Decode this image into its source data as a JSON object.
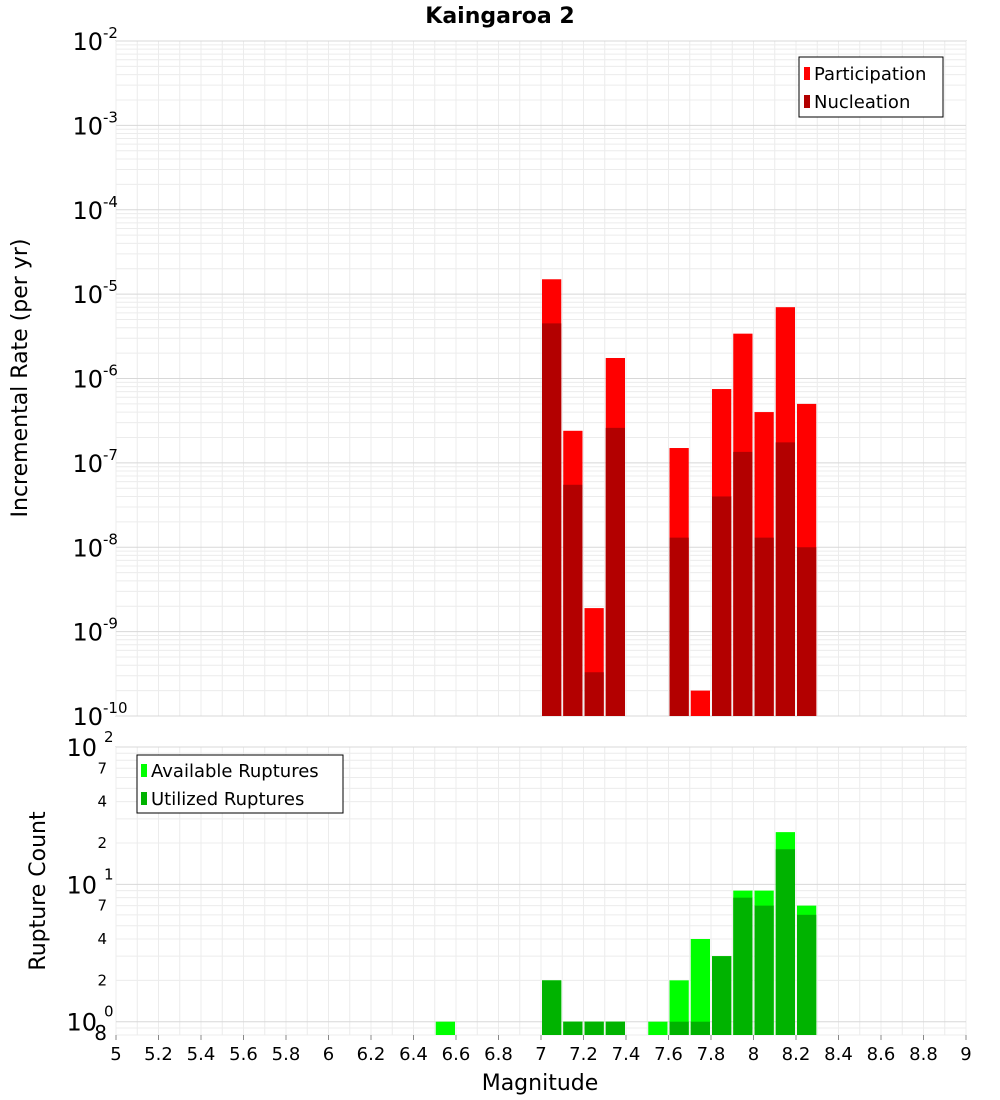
{
  "chart_data": [
    {
      "type": "bar",
      "title": "Kaingaroa 2",
      "xlabel": "",
      "ylabel": "Incremental Rate (per yr)",
      "yscale": "log",
      "ylim": [
        1e-10,
        0.01
      ],
      "xlim": [
        5,
        9
      ],
      "grid": true,
      "legend_position": "top-right",
      "bar_width": 0.1,
      "y_ticks": [
        {
          "base": "10",
          "exp": "-2",
          "value": 0.01
        },
        {
          "base": "10",
          "exp": "-3",
          "value": 0.001
        },
        {
          "base": "10",
          "exp": "-4",
          "value": 0.0001
        },
        {
          "base": "10",
          "exp": "-5",
          "value": 1e-05
        },
        {
          "base": "10",
          "exp": "-6",
          "value": 1e-06
        },
        {
          "base": "10",
          "exp": "-7",
          "value": 1e-07
        },
        {
          "base": "10",
          "exp": "-8",
          "value": 1e-08
        },
        {
          "base": "10",
          "exp": "-9",
          "value": 1e-09
        },
        {
          "base": "10",
          "exp": "-10",
          "value": 1e-10
        }
      ],
      "series": [
        {
          "name": "Participation",
          "color": "#ff0000",
          "points": [
            {
              "x": 7.05,
              "y": 1.5e-05
            },
            {
              "x": 7.15,
              "y": 2.4e-07
            },
            {
              "x": 7.25,
              "y": 1.9e-09
            },
            {
              "x": 7.35,
              "y": 1.75e-06
            },
            {
              "x": 7.65,
              "y": 1.5e-07
            },
            {
              "x": 7.75,
              "y": 2e-10
            },
            {
              "x": 7.85,
              "y": 7.5e-07
            },
            {
              "x": 7.95,
              "y": 3.4e-06
            },
            {
              "x": 8.05,
              "y": 4e-07
            },
            {
              "x": 8.15,
              "y": 7e-06
            },
            {
              "x": 8.25,
              "y": 5e-07
            }
          ]
        },
        {
          "name": "Nucleation",
          "color": "#b30000",
          "points": [
            {
              "x": 7.05,
              "y": 4.5e-06
            },
            {
              "x": 7.15,
              "y": 5.5e-08
            },
            {
              "x": 7.25,
              "y": 3.3e-10
            },
            {
              "x": 7.35,
              "y": 2.6e-07
            },
            {
              "x": 7.65,
              "y": 1.3e-08
            },
            {
              "x": 7.85,
              "y": 4e-08
            },
            {
              "x": 7.95,
              "y": 1.35e-07
            },
            {
              "x": 8.05,
              "y": 1.3e-08
            },
            {
              "x": 8.15,
              "y": 1.75e-07
            },
            {
              "x": 8.25,
              "y": 1e-08
            }
          ]
        }
      ]
    },
    {
      "type": "bar",
      "title": "",
      "xlabel": "Magnitude",
      "ylabel": "Rupture Count",
      "yscale": "log",
      "ylim": [
        0.8,
        100
      ],
      "xlim": [
        5,
        9
      ],
      "grid": true,
      "legend_position": "top-left",
      "bar_width": 0.1,
      "x_ticks": [
        "5",
        "5.2",
        "5.4",
        "5.6",
        "5.8",
        "6",
        "6.2",
        "6.4",
        "6.6",
        "6.8",
        "7",
        "7.2",
        "7.4",
        "7.6",
        "7.8",
        "8",
        "8.2",
        "8.4",
        "8.6",
        "8.8",
        "9"
      ],
      "y_major_ticks": [
        {
          "base": "10",
          "exp": "2",
          "value": 100
        },
        {
          "base": "10",
          "exp": "1",
          "value": 10
        },
        {
          "base": "10",
          "exp": "0",
          "value": 1
        }
      ],
      "y_minor_ticks": [
        {
          "label": "7",
          "value": 70
        },
        {
          "label": "4",
          "value": 40
        },
        {
          "label": "2",
          "value": 20
        },
        {
          "label": "7",
          "value": 7
        },
        {
          "label": "4",
          "value": 4
        },
        {
          "label": "2",
          "value": 2
        },
        {
          "label": "8",
          "value": 0.8
        }
      ],
      "series": [
        {
          "name": "Available Ruptures",
          "color": "#00ff00",
          "points": [
            {
              "x": 6.55,
              "y": 1
            },
            {
              "x": 7.05,
              "y": 2
            },
            {
              "x": 7.15,
              "y": 1
            },
            {
              "x": 7.25,
              "y": 1
            },
            {
              "x": 7.35,
              "y": 1
            },
            {
              "x": 7.55,
              "y": 1
            },
            {
              "x": 7.65,
              "y": 2
            },
            {
              "x": 7.75,
              "y": 4
            },
            {
              "x": 7.85,
              "y": 3
            },
            {
              "x": 7.95,
              "y": 9
            },
            {
              "x": 8.05,
              "y": 9
            },
            {
              "x": 8.15,
              "y": 24
            },
            {
              "x": 8.25,
              "y": 7
            }
          ]
        },
        {
          "name": "Utilized Ruptures",
          "color": "#00b300",
          "points": [
            {
              "x": 7.05,
              "y": 2
            },
            {
              "x": 7.15,
              "y": 1
            },
            {
              "x": 7.25,
              "y": 1
            },
            {
              "x": 7.35,
              "y": 1
            },
            {
              "x": 7.65,
              "y": 1
            },
            {
              "x": 7.75,
              "y": 1
            },
            {
              "x": 7.85,
              "y": 3
            },
            {
              "x": 7.95,
              "y": 8
            },
            {
              "x": 8.05,
              "y": 7
            },
            {
              "x": 8.15,
              "y": 18
            },
            {
              "x": 8.25,
              "y": 6
            }
          ]
        }
      ]
    }
  ]
}
